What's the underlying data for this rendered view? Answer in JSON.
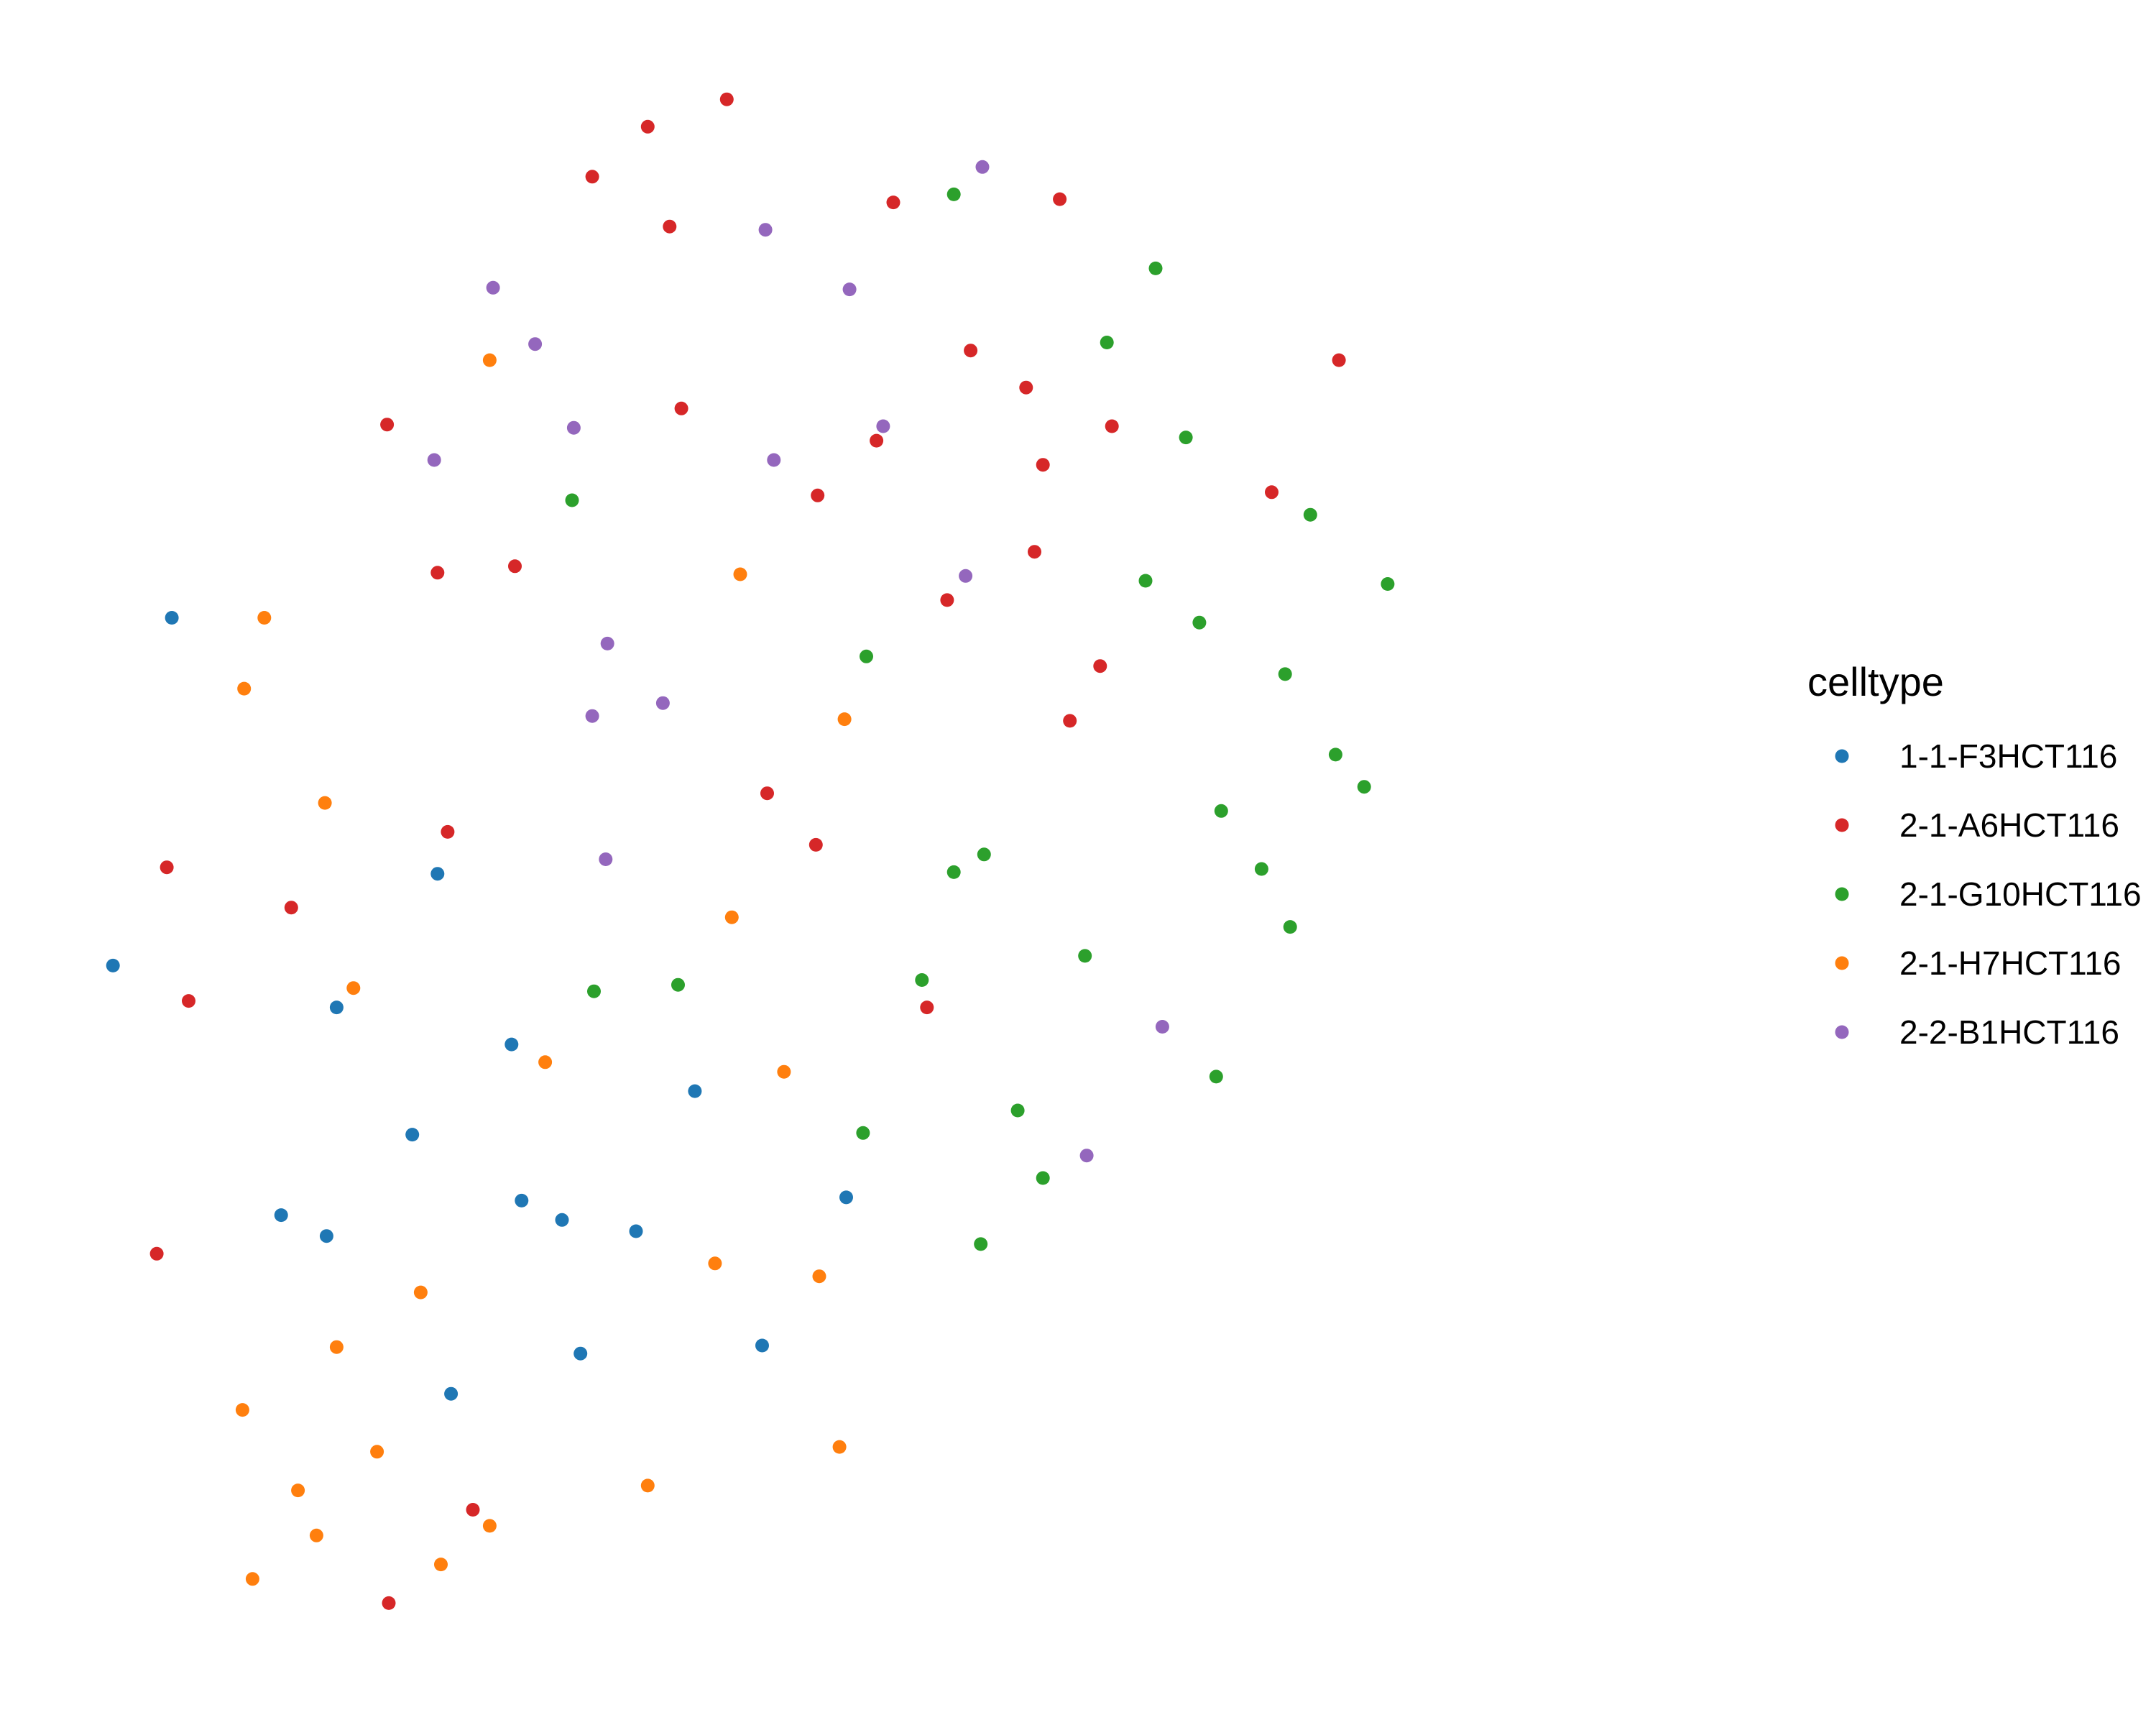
{
  "chart_data": {
    "type": "scatter",
    "title": "",
    "xlabel": "",
    "ylabel": "",
    "xlim": [
      0,
      1
    ],
    "ylim": [
      0,
      1
    ],
    "grid": false,
    "axes": false,
    "legend": {
      "title": "celltype",
      "position": "right"
    },
    "series": [
      {
        "name": "1-1-F3HCT116",
        "color": "#1f77b4",
        "points": [
          {
            "x": 0.068,
            "y": 0.652
          },
          {
            "x": 0.033,
            "y": 0.436
          },
          {
            "x": 0.226,
            "y": 0.493
          },
          {
            "x": 0.166,
            "y": 0.41
          },
          {
            "x": 0.27,
            "y": 0.387
          },
          {
            "x": 0.379,
            "y": 0.358
          },
          {
            "x": 0.211,
            "y": 0.331
          },
          {
            "x": 0.133,
            "y": 0.281
          },
          {
            "x": 0.276,
            "y": 0.29
          },
          {
            "x": 0.3,
            "y": 0.278
          },
          {
            "x": 0.344,
            "y": 0.271
          },
          {
            "x": 0.16,
            "y": 0.268
          },
          {
            "x": 0.469,
            "y": 0.292
          },
          {
            "x": 0.311,
            "y": 0.195
          },
          {
            "x": 0.234,
            "y": 0.17
          },
          {
            "x": 0.419,
            "y": 0.2
          }
        ]
      },
      {
        "name": "2-1-A6HCT116",
        "color": "#d62728",
        "points": [
          {
            "x": 0.398,
            "y": 0.974
          },
          {
            "x": 0.351,
            "y": 0.957
          },
          {
            "x": 0.318,
            "y": 0.926
          },
          {
            "x": 0.364,
            "y": 0.895
          },
          {
            "x": 0.497,
            "y": 0.91
          },
          {
            "x": 0.596,
            "y": 0.912
          },
          {
            "x": 0.543,
            "y": 0.818
          },
          {
            "x": 0.576,
            "y": 0.795
          },
          {
            "x": 0.627,
            "y": 0.771
          },
          {
            "x": 0.762,
            "y": 0.812
          },
          {
            "x": 0.371,
            "y": 0.782
          },
          {
            "x": 0.196,
            "y": 0.772
          },
          {
            "x": 0.487,
            "y": 0.762
          },
          {
            "x": 0.586,
            "y": 0.747
          },
          {
            "x": 0.452,
            "y": 0.728
          },
          {
            "x": 0.722,
            "y": 0.73
          },
          {
            "x": 0.272,
            "y": 0.684
          },
          {
            "x": 0.226,
            "y": 0.68
          },
          {
            "x": 0.581,
            "y": 0.693
          },
          {
            "x": 0.529,
            "y": 0.663
          },
          {
            "x": 0.62,
            "y": 0.622
          },
          {
            "x": 0.602,
            "y": 0.588
          },
          {
            "x": 0.422,
            "y": 0.543
          },
          {
            "x": 0.451,
            "y": 0.511
          },
          {
            "x": 0.232,
            "y": 0.519
          },
          {
            "x": 0.065,
            "y": 0.497
          },
          {
            "x": 0.139,
            "y": 0.472
          },
          {
            "x": 0.078,
            "y": 0.414
          },
          {
            "x": 0.517,
            "y": 0.41
          },
          {
            "x": 0.059,
            "y": 0.257
          },
          {
            "x": 0.247,
            "y": 0.098
          },
          {
            "x": 0.197,
            "y": 0.04
          }
        ]
      },
      {
        "name": "2-1-G10HCT116",
        "color": "#2ca02c",
        "points": [
          {
            "x": 0.533,
            "y": 0.915
          },
          {
            "x": 0.653,
            "y": 0.869
          },
          {
            "x": 0.624,
            "y": 0.823
          },
          {
            "x": 0.671,
            "y": 0.764
          },
          {
            "x": 0.306,
            "y": 0.725
          },
          {
            "x": 0.745,
            "y": 0.716
          },
          {
            "x": 0.647,
            "y": 0.675
          },
          {
            "x": 0.679,
            "y": 0.649
          },
          {
            "x": 0.791,
            "y": 0.673
          },
          {
            "x": 0.481,
            "y": 0.628
          },
          {
            "x": 0.73,
            "y": 0.617
          },
          {
            "x": 0.76,
            "y": 0.567
          },
          {
            "x": 0.777,
            "y": 0.547
          },
          {
            "x": 0.692,
            "y": 0.532
          },
          {
            "x": 0.551,
            "y": 0.505
          },
          {
            "x": 0.533,
            "y": 0.494
          },
          {
            "x": 0.716,
            "y": 0.496
          },
          {
            "x": 0.733,
            "y": 0.46
          },
          {
            "x": 0.611,
            "y": 0.442
          },
          {
            "x": 0.514,
            "y": 0.427
          },
          {
            "x": 0.369,
            "y": 0.424
          },
          {
            "x": 0.319,
            "y": 0.42
          },
          {
            "x": 0.689,
            "y": 0.367
          },
          {
            "x": 0.571,
            "y": 0.346
          },
          {
            "x": 0.479,
            "y": 0.332
          },
          {
            "x": 0.586,
            "y": 0.304
          },
          {
            "x": 0.549,
            "y": 0.263
          }
        ]
      },
      {
        "name": "2-1-H7HCT116",
        "color": "#ff7f0e",
        "points": [
          {
            "x": 0.257,
            "y": 0.812
          },
          {
            "x": 0.406,
            "y": 0.679
          },
          {
            "x": 0.123,
            "y": 0.652
          },
          {
            "x": 0.111,
            "y": 0.608
          },
          {
            "x": 0.468,
            "y": 0.589
          },
          {
            "x": 0.159,
            "y": 0.537
          },
          {
            "x": 0.401,
            "y": 0.466
          },
          {
            "x": 0.176,
            "y": 0.422
          },
          {
            "x": 0.29,
            "y": 0.376
          },
          {
            "x": 0.432,
            "y": 0.37
          },
          {
            "x": 0.391,
            "y": 0.251
          },
          {
            "x": 0.453,
            "y": 0.243
          },
          {
            "x": 0.216,
            "y": 0.233
          },
          {
            "x": 0.166,
            "y": 0.199
          },
          {
            "x": 0.11,
            "y": 0.16
          },
          {
            "x": 0.19,
            "y": 0.134
          },
          {
            "x": 0.465,
            "y": 0.137
          },
          {
            "x": 0.351,
            "y": 0.113
          },
          {
            "x": 0.143,
            "y": 0.11
          },
          {
            "x": 0.154,
            "y": 0.082
          },
          {
            "x": 0.257,
            "y": 0.088
          },
          {
            "x": 0.228,
            "y": 0.064
          },
          {
            "x": 0.116,
            "y": 0.055
          }
        ]
      },
      {
        "name": "2-2-B1HCT116",
        "color": "#9467bd",
        "points": [
          {
            "x": 0.55,
            "y": 0.932
          },
          {
            "x": 0.421,
            "y": 0.893
          },
          {
            "x": 0.259,
            "y": 0.857
          },
          {
            "x": 0.284,
            "y": 0.822
          },
          {
            "x": 0.471,
            "y": 0.856
          },
          {
            "x": 0.307,
            "y": 0.77
          },
          {
            "x": 0.426,
            "y": 0.75
          },
          {
            "x": 0.491,
            "y": 0.771
          },
          {
            "x": 0.224,
            "y": 0.75
          },
          {
            "x": 0.54,
            "y": 0.678
          },
          {
            "x": 0.327,
            "y": 0.636
          },
          {
            "x": 0.36,
            "y": 0.599
          },
          {
            "x": 0.318,
            "y": 0.591
          },
          {
            "x": 0.326,
            "y": 0.502
          },
          {
            "x": 0.657,
            "y": 0.398
          },
          {
            "x": 0.612,
            "y": 0.318
          }
        ]
      }
    ]
  }
}
